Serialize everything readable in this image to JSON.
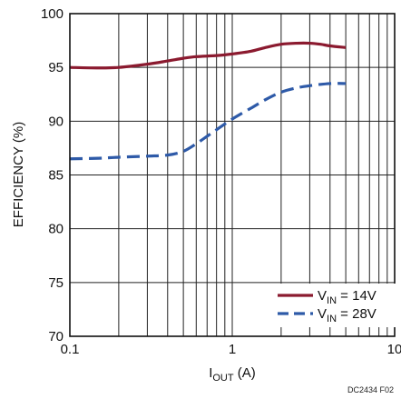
{
  "chart_data": {
    "type": "line",
    "x_scale": "log",
    "xlim": [
      0.1,
      10
    ],
    "ylim": [
      70,
      100
    ],
    "x_ticks": [
      0.1,
      1,
      10
    ],
    "x_tick_labels": [
      "0.1",
      "1",
      "10"
    ],
    "y_ticks": [
      70,
      75,
      80,
      85,
      90,
      95,
      100
    ],
    "y_tick_labels": [
      "70",
      "75",
      "80",
      "85",
      "90",
      "95",
      "100"
    ],
    "grid": true,
    "ylabel": "EFFICIENCY (%)",
    "xlabel": {
      "main": "I",
      "sub": "OUT",
      "rest": " (A)"
    },
    "legend_position": "bottom-right",
    "series": [
      {
        "name": {
          "main": "V",
          "sub": "IN",
          "rest": " = 14V"
        },
        "color": "#8b1a2f",
        "dash": "solid",
        "x": [
          0.1,
          0.15,
          0.2,
          0.3,
          0.4,
          0.5,
          0.6,
          0.8,
          1.0,
          1.3,
          1.6,
          2.0,
          2.5,
          3.0,
          3.5,
          4.0,
          5.0
        ],
        "y": [
          95.0,
          94.95,
          95.0,
          95.3,
          95.6,
          95.85,
          96.0,
          96.1,
          96.25,
          96.5,
          96.85,
          97.15,
          97.25,
          97.25,
          97.15,
          97.0,
          96.85
        ]
      },
      {
        "name": {
          "main": "V",
          "sub": "IN",
          "rest": " = 28V"
        },
        "color": "#2e5aa8",
        "dash": "dashed",
        "x": [
          0.1,
          0.15,
          0.2,
          0.3,
          0.4,
          0.5,
          0.6,
          0.7,
          0.8,
          1.0,
          1.3,
          1.6,
          2.0,
          2.5,
          3.0,
          4.0,
          5.0
        ],
        "y": [
          86.5,
          86.55,
          86.65,
          86.75,
          86.85,
          87.2,
          87.9,
          88.6,
          89.2,
          90.2,
          91.2,
          92.0,
          92.7,
          93.1,
          93.3,
          93.5,
          93.5
        ]
      }
    ]
  },
  "figure_id": "DC2434 F02"
}
